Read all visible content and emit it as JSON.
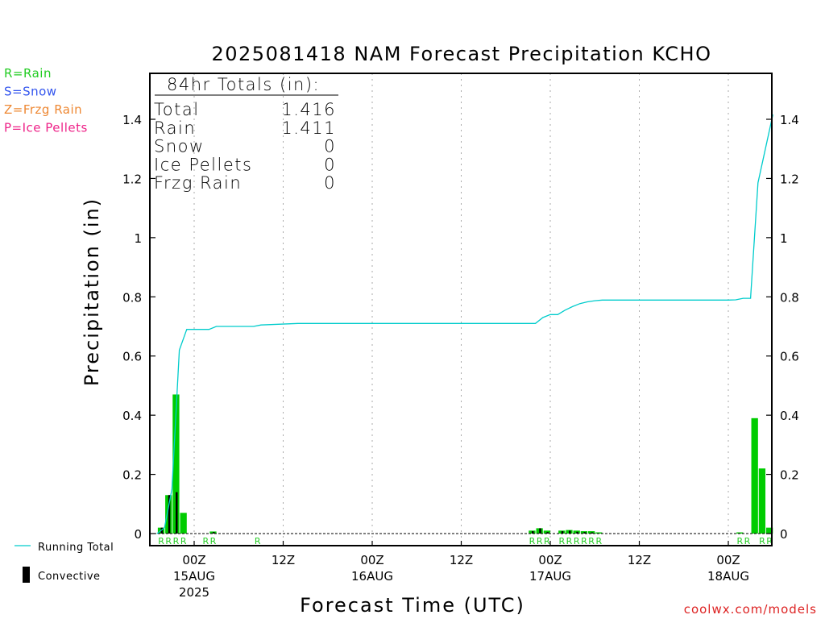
{
  "chart_data": {
    "type": "bar",
    "title": "2025081418 NAM Forecast Precipitation KCHO",
    "ylabel": "Precipitation (in)",
    "xlabel": "Forecast Time (UTC)",
    "ylim": [
      -0.04,
      1.56
    ],
    "yticks": [
      "0",
      "0.2",
      "0.4",
      "0.6",
      "0.8",
      "1",
      "1.2",
      "1.4"
    ],
    "ytick_values": [
      0,
      0.2,
      0.4,
      0.6,
      0.8,
      1.0,
      1.2,
      1.4
    ],
    "xlim_hours": [
      0,
      87.5
    ],
    "grid": "vertical dotted at each 12h",
    "xticks": [
      {
        "hour": 6,
        "lines": [
          "00Z",
          "15AUG",
          "2025"
        ]
      },
      {
        "hour": 18,
        "lines": [
          "12Z"
        ]
      },
      {
        "hour": 30,
        "lines": [
          "00Z",
          "16AUG"
        ]
      },
      {
        "hour": 42,
        "lines": [
          "12Z"
        ]
      },
      {
        "hour": 54,
        "lines": [
          "00Z",
          "17AUG"
        ]
      },
      {
        "hour": 66,
        "lines": [
          "12Z"
        ]
      },
      {
        "hour": 78,
        "lines": [
          "00Z",
          "18AUG"
        ]
      }
    ],
    "series": [
      {
        "name": "Precipitation",
        "color": "#00cc00",
        "x": [
          2,
          3,
          4,
          5,
          9,
          52,
          53,
          54,
          56,
          57,
          58,
          59,
          60,
          61,
          80,
          82,
          83,
          84
        ],
        "values": [
          0.02,
          0.13,
          0.47,
          0.07,
          0.007,
          0.01,
          0.018,
          0.01,
          0.01,
          0.012,
          0.01,
          0.008,
          0.008,
          0.004,
          0.004,
          0.39,
          0.22,
          0.02
        ]
      },
      {
        "name": "Convective",
        "color": "#000000",
        "x": [
          2,
          3,
          4,
          5,
          9,
          52,
          53,
          54,
          56,
          57,
          58,
          59,
          60,
          61,
          80,
          82,
          83,
          84
        ],
        "values": [
          0.02,
          0.13,
          0.14,
          0.0,
          0.005,
          0.008,
          0.018,
          0.005,
          0.008,
          0.01,
          0.006,
          0.005,
          0.004,
          0.0,
          0.0,
          0.0,
          0.0,
          0.0
        ]
      },
      {
        "name": "Running Total",
        "color": "#00cccc",
        "x": [
          1,
          2,
          3,
          4,
          5,
          8,
          9,
          14,
          15,
          20,
          30,
          40,
          41,
          52,
          53,
          54,
          55,
          56,
          57,
          58,
          59,
          60,
          61,
          62,
          63,
          66,
          78,
          79,
          80,
          81,
          82,
          83,
          84
        ],
        "values": [
          0.0,
          0.02,
          0.15,
          0.62,
          0.69,
          0.69,
          0.7,
          0.7,
          0.705,
          0.71,
          0.71,
          0.71,
          0.71,
          0.71,
          0.73,
          0.74,
          0.74,
          0.755,
          0.767,
          0.777,
          0.783,
          0.787,
          0.789,
          0.789,
          0.789,
          0.789,
          0.789,
          0.79,
          0.795,
          0.795,
          1.185,
          1.3,
          1.416
        ]
      }
    ],
    "ptype_marks": [
      {
        "hour": 2,
        "text": "R"
      },
      {
        "hour": 3,
        "text": "R"
      },
      {
        "hour": 4,
        "text": "R"
      },
      {
        "hour": 5,
        "text": "R"
      },
      {
        "hour": 8,
        "text": "R"
      },
      {
        "hour": 9,
        "text": "R"
      },
      {
        "hour": 15,
        "text": "R"
      },
      {
        "hour": 52,
        "text": "R"
      },
      {
        "hour": 53,
        "text": "R"
      },
      {
        "hour": 54,
        "text": "R"
      },
      {
        "hour": 56,
        "text": "R"
      },
      {
        "hour": 57,
        "text": "R"
      },
      {
        "hour": 58,
        "text": "R"
      },
      {
        "hour": 59,
        "text": "R"
      },
      {
        "hour": 60,
        "text": "R"
      },
      {
        "hour": 61,
        "text": "R"
      },
      {
        "hour": 80,
        "text": "R"
      },
      {
        "hour": 81,
        "text": "R"
      },
      {
        "hour": 83,
        "text": "R"
      },
      {
        "hour": 84,
        "text": "R"
      }
    ],
    "totals": {
      "heading": "84hr Totals (in):",
      "rows": [
        {
          "label": "Total",
          "value": "1.416"
        },
        {
          "label": "Rain",
          "value": "1.411"
        },
        {
          "label": "Snow",
          "value": "0"
        },
        {
          "label": "Ice Pellets",
          "value": "0"
        },
        {
          "label": "Frzg Rain",
          "value": "0"
        }
      ]
    },
    "ptype_legend": [
      {
        "text": "R=Rain",
        "color": "#22cc22"
      },
      {
        "text": "S=Snow",
        "color": "#3355ee"
      },
      {
        "text": "Z=Frzg Rain",
        "color": "#ee8833"
      },
      {
        "text": "P=Ice Pellets",
        "color": "#ee2288"
      }
    ],
    "line_legend": [
      {
        "text": "Running Total"
      },
      {
        "text": "Convective"
      }
    ],
    "credit": "coolwx.com/models"
  }
}
